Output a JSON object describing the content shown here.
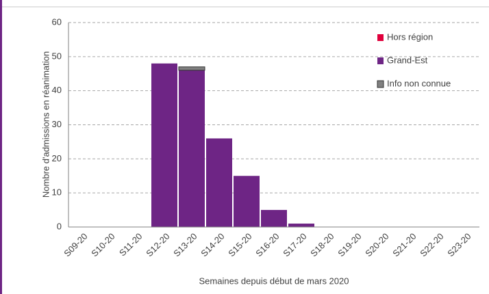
{
  "chart_data": {
    "type": "bar",
    "stacked": true,
    "y_label": "Nombre d'admissions en réanimation",
    "x_label": "Semaines depuis début de mars 2020",
    "categories": [
      "S09-20",
      "S10-20",
      "S11-20",
      "S12-20",
      "S13-20",
      "S14-20",
      "S15-20",
      "S16-20",
      "S17-20",
      "S18-20",
      "S19-20",
      "S20-20",
      "S21-20",
      "S22-20",
      "S23-20"
    ],
    "series": [
      {
        "name": "Hors région",
        "color": "#e0003c",
        "values": [
          0,
          0,
          0,
          0,
          0,
          0,
          0,
          0,
          0,
          0,
          0,
          0,
          0,
          0,
          0
        ]
      },
      {
        "name": "Grand-Est",
        "color": "#6e2585",
        "values": [
          0,
          0,
          0,
          48,
          46,
          26,
          15,
          5,
          1,
          0,
          0,
          0,
          0,
          0,
          0
        ]
      },
      {
        "name": "Info non connue",
        "color": "#808080",
        "values": [
          0,
          0,
          0,
          0,
          1,
          0,
          0,
          0,
          0,
          0,
          0,
          0,
          0,
          0,
          0
        ]
      }
    ],
    "ylim": [
      0,
      60
    ],
    "yticks": [
      0,
      10,
      20,
      30,
      40,
      50,
      60
    ],
    "grid": true
  }
}
